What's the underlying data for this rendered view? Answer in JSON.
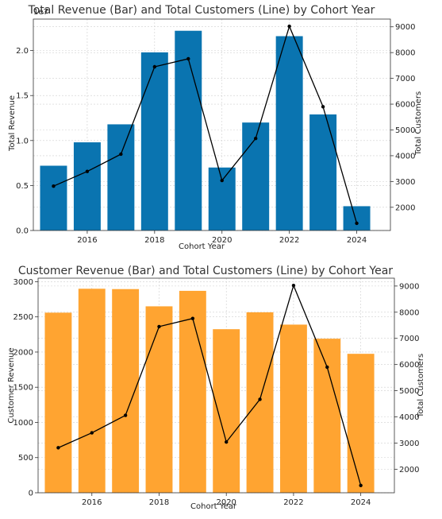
{
  "chart_data": [
    {
      "type": "bar",
      "title": "Total Revenue (Bar) and Total Customers (Line) by Cohort Year",
      "xlabel": "Cohort Year",
      "ylabel": "Total Revenue",
      "y2label": "Total Customers",
      "y_offset_text": "1e7",
      "bar_color": "#0a74b0",
      "line_color": "#000000",
      "x": [
        2015,
        2016,
        2017,
        2018,
        2019,
        2020,
        2021,
        2022,
        2023,
        2024
      ],
      "xlim": [
        2014.4,
        2025.0
      ],
      "ylim": [
        0,
        2.35
      ],
      "y2lim": [
        1100,
        9300
      ],
      "xticks": [
        2016,
        2018,
        2020,
        2022,
        2024
      ],
      "yticks": [
        0.0,
        0.5,
        1.0,
        1.5,
        2.0
      ],
      "yticklabels": [
        "0.0",
        "0.5",
        "1.0",
        "1.5",
        "2.0"
      ],
      "y2ticks": [
        2000,
        3000,
        4000,
        5000,
        6000,
        7000,
        8000,
        9000
      ],
      "grid": true,
      "series": [
        {
          "name": "Total Revenue",
          "type": "bar",
          "axis": "left",
          "values": [
            0.72,
            0.98,
            1.18,
            1.98,
            2.22,
            0.7,
            1.2,
            2.16,
            1.29,
            0.27
          ]
        },
        {
          "name": "Total Customers",
          "type": "line",
          "axis": "right",
          "values": [
            2820,
            3390,
            4060,
            7450,
            7760,
            3040,
            4670,
            9020,
            5900,
            1380
          ]
        }
      ]
    },
    {
      "type": "bar",
      "title": "Customer Revenue (Bar) and Total Customers (Line) by Cohort Year",
      "xlabel": "Cohort Year",
      "ylabel": "Customer Revenue",
      "y2label": "Total Customers",
      "bar_color": "#ffa431",
      "line_color": "#000000",
      "x": [
        2015,
        2016,
        2017,
        2018,
        2019,
        2020,
        2021,
        2022,
        2023,
        2024
      ],
      "xlim": [
        2014.4,
        2025.0
      ],
      "ylim": [
        0,
        3050
      ],
      "y2lim": [
        1100,
        9300
      ],
      "xticks": [
        2016,
        2018,
        2020,
        2022,
        2024
      ],
      "yticks": [
        0,
        500,
        1000,
        1500,
        2000,
        2500,
        3000
      ],
      "yticklabels": [
        "0",
        "500",
        "1000",
        "1500",
        "2000",
        "2500",
        "3000"
      ],
      "y2ticks": [
        2000,
        3000,
        4000,
        5000,
        6000,
        7000,
        8000,
        9000
      ],
      "grid": true,
      "series": [
        {
          "name": "Customer Revenue",
          "type": "bar",
          "axis": "left",
          "values": [
            2560,
            2900,
            2895,
            2650,
            2870,
            2325,
            2565,
            2390,
            2190,
            1975
          ]
        },
        {
          "name": "Total Customers",
          "type": "line",
          "axis": "right",
          "values": [
            2820,
            3390,
            4060,
            7450,
            7760,
            3040,
            4670,
            9020,
            5900,
            1380
          ]
        }
      ]
    }
  ]
}
